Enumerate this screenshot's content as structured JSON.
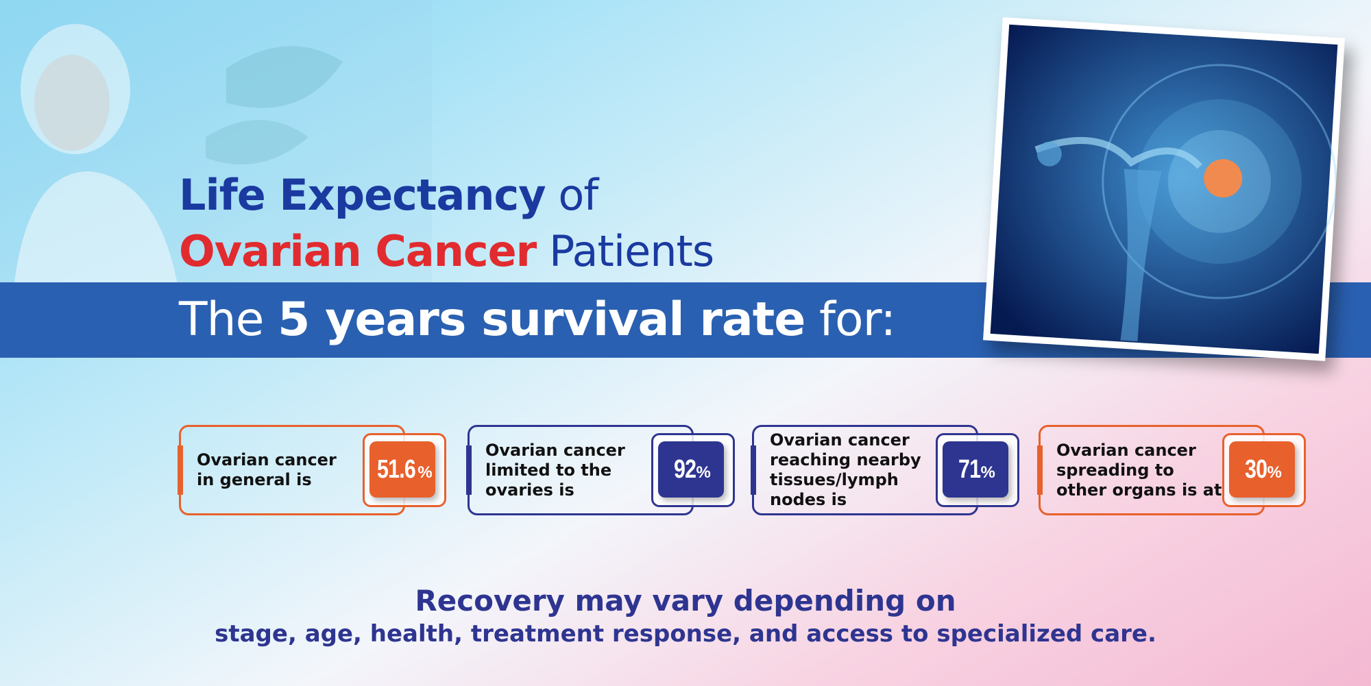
{
  "title": {
    "line1_bold": "Life Expectancy",
    "line1_rest": "of",
    "line2_bold": "Ovarian Cancer",
    "line2_rest": "Patients"
  },
  "banner": {
    "lead": "The",
    "bold": "5 years survival rate",
    "tail": "for:"
  },
  "cards": [
    {
      "lines": [
        "Ovarian cancer",
        "in general is"
      ],
      "number": "51.6",
      "unit": "%",
      "color": "#e8602c"
    },
    {
      "lines": [
        "Ovarian cancer",
        "limited to the",
        "ovaries is"
      ],
      "number": "92",
      "unit": "%",
      "color": "#2e3590"
    },
    {
      "lines": [
        "Ovarian cancer",
        "reaching nearby",
        "tissues/lymph",
        "nodes is"
      ],
      "number": "71",
      "unit": "%",
      "color": "#2e3590"
    },
    {
      "lines": [
        "Ovarian cancer",
        "spreading to",
        "other organs is at"
      ],
      "number": "30",
      "unit": "%",
      "color": "#e8602c"
    }
  ],
  "footer": {
    "heading": "Recovery may vary depending on",
    "text": "stage, age, health, treatment response, and access to specialized care."
  }
}
